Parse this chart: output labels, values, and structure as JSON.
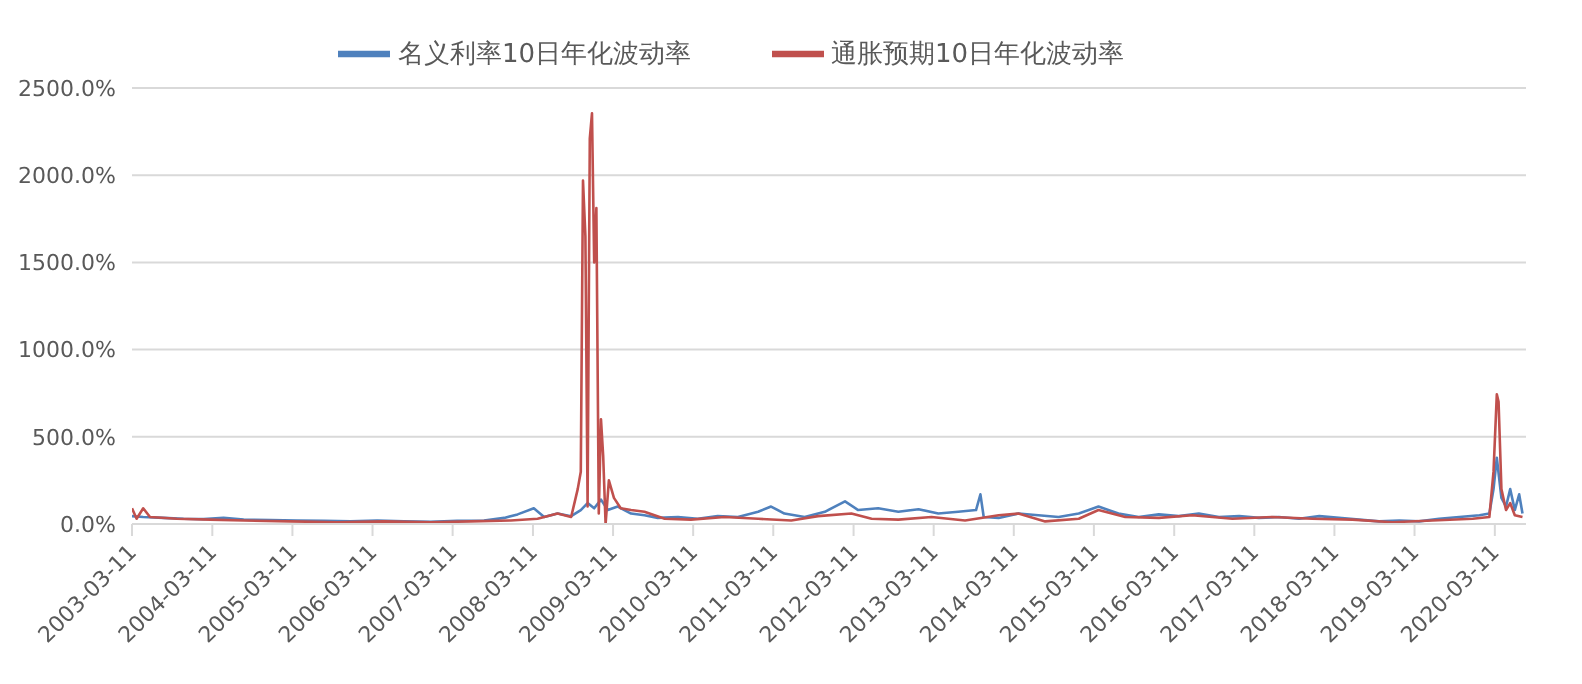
{
  "chart_data": {
    "type": "line",
    "legend": "top",
    "grid": "y",
    "marker": "none",
    "line_style": "solid",
    "xlim": [
      "2003-03-11",
      "2020-07-31"
    ],
    "xticks": [
      "2003-03-11",
      "2004-03-11",
      "2005-03-11",
      "2006-03-11",
      "2007-03-11",
      "2008-03-11",
      "2009-03-11",
      "2010-03-11",
      "2011-03-11",
      "2012-03-11",
      "2013-03-11",
      "2014-03-11",
      "2015-03-11",
      "2016-03-11",
      "2017-03-11",
      "2018-03-11",
      "2019-03-11",
      "2020-03-11"
    ],
    "ylim": [
      0,
      2500
    ],
    "yticks": [
      {
        "value": 0,
        "label": "0.0%"
      },
      {
        "value": 500,
        "label": "500.0%"
      },
      {
        "value": 1000,
        "label": "1000.0%"
      },
      {
        "value": 1500,
        "label": "1500.0%"
      },
      {
        "value": 2000,
        "label": "2000.0%"
      },
      {
        "value": 2500,
        "label": "2500.0%"
      }
    ],
    "series": [
      {
        "name": "名义利率10日年化波动率",
        "color": "#4f81bd",
        "x": [
          "2003-03-11",
          "2003-05-01",
          "2003-08-01",
          "2003-11-01",
          "2004-02-01",
          "2004-05-01",
          "2004-08-01",
          "2004-12-01",
          "2005-04-01",
          "2005-08-01",
          "2005-12-01",
          "2006-04-01",
          "2006-08-01",
          "2006-12-01",
          "2007-04-01",
          "2007-08-01",
          "2007-11-01",
          "2008-01-01",
          "2008-03-15",
          "2008-05-01",
          "2008-07-01",
          "2008-09-01",
          "2008-10-15",
          "2008-11-15",
          "2008-12-15",
          "2009-01-15",
          "2009-02-15",
          "2009-04-01",
          "2009-06-01",
          "2009-08-01",
          "2009-10-01",
          "2010-01-01",
          "2010-04-01",
          "2010-07-01",
          "2010-10-01",
          "2011-01-01",
          "2011-03-01",
          "2011-05-01",
          "2011-08-01",
          "2011-11-01",
          "2012-02-01",
          "2012-04-01",
          "2012-07-01",
          "2012-10-01",
          "2013-01-01",
          "2013-04-01",
          "2013-07-01",
          "2013-09-20",
          "2013-10-10",
          "2013-10-25",
          "2014-01-01",
          "2014-04-01",
          "2014-07-01",
          "2014-10-01",
          "2015-01-01",
          "2015-04-01",
          "2015-07-01",
          "2015-10-01",
          "2016-01-01",
          "2016-04-01",
          "2016-07-01",
          "2016-10-01",
          "2017-01-01",
          "2017-04-01",
          "2017-07-01",
          "2017-10-01",
          "2018-01-01",
          "2018-04-01",
          "2018-07-01",
          "2018-10-01",
          "2019-01-01",
          "2019-04-01",
          "2019-07-01",
          "2019-10-01",
          "2020-01-01",
          "2020-02-15",
          "2020-03-05",
          "2020-03-20",
          "2020-04-10",
          "2020-05-01",
          "2020-05-20",
          "2020-06-10",
          "2020-06-30",
          "2020-07-15"
        ],
        "values": [
          45,
          40,
          35,
          30,
          28,
          35,
          25,
          22,
          20,
          18,
          15,
          20,
          15,
          12,
          18,
          20,
          35,
          55,
          90,
          40,
          60,
          45,
          80,
          120,
          90,
          140,
          80,
          100,
          60,
          50,
          35,
          40,
          30,
          45,
          40,
          70,
          100,
          60,
          40,
          70,
          130,
          80,
          90,
          70,
          85,
          60,
          70,
          80,
          170,
          40,
          35,
          60,
          50,
          40,
          60,
          100,
          60,
          40,
          55,
          45,
          60,
          40,
          45,
          35,
          40,
          30,
          45,
          35,
          25,
          15,
          20,
          15,
          30,
          40,
          50,
          60,
          200,
          380,
          150,
          100,
          200,
          80,
          170,
          60
        ]
      },
      {
        "name": "通胀预期10日年化波动率",
        "color": "#c0504d",
        "x": [
          "2003-03-11",
          "2003-04-01",
          "2003-05-01",
          "2003-06-01",
          "2003-10-01",
          "2004-03-01",
          "2004-08-01",
          "2005-03-01",
          "2005-10-01",
          "2006-05-01",
          "2006-12-01",
          "2007-06-01",
          "2007-12-01",
          "2008-04-01",
          "2008-07-01",
          "2008-09-01",
          "2008-10-01",
          "2008-10-15",
          "2008-10-25",
          "2008-11-05",
          "2008-11-15",
          "2008-11-25",
          "2008-12-05",
          "2008-12-15",
          "2008-12-25",
          "2009-01-05",
          "2009-01-15",
          "2009-01-25",
          "2009-02-05",
          "2009-02-20",
          "2009-03-15",
          "2009-04-15",
          "2009-06-01",
          "2009-08-01",
          "2009-11-01",
          "2010-03-01",
          "2010-08-01",
          "2011-01-01",
          "2011-06-01",
          "2011-10-01",
          "2012-03-01",
          "2012-06-01",
          "2012-10-01",
          "2013-03-01",
          "2013-08-01",
          "2014-01-01",
          "2014-04-01",
          "2014-08-01",
          "2015-01-01",
          "2015-04-01",
          "2015-08-01",
          "2016-01-01",
          "2016-06-01",
          "2016-12-01",
          "2017-06-01",
          "2017-12-01",
          "2018-06-01",
          "2018-12-01",
          "2019-06-01",
          "2019-12-01",
          "2020-02-15",
          "2020-03-05",
          "2020-03-20",
          "2020-03-28",
          "2020-04-10",
          "2020-05-01",
          "2020-05-20",
          "2020-06-10",
          "2020-07-15"
        ],
        "values": [
          90,
          30,
          90,
          40,
          30,
          25,
          20,
          15,
          10,
          15,
          10,
          15,
          20,
          30,
          60,
          40,
          200,
          300,
          1970,
          1650,
          100,
          2210,
          2355,
          1500,
          1812,
          60,
          600,
          391,
          0,
          250,
          150,
          90,
          80,
          70,
          30,
          25,
          40,
          30,
          20,
          45,
          60,
          30,
          25,
          40,
          20,
          50,
          60,
          15,
          30,
          80,
          40,
          35,
          50,
          30,
          40,
          30,
          25,
          10,
          20,
          30,
          40,
          300,
          743,
          700,
          200,
          80,
          120,
          50,
          40
        ]
      }
    ]
  }
}
